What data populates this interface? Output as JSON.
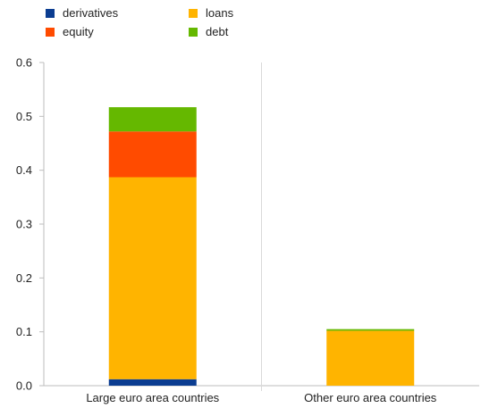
{
  "chart_data": {
    "type": "bar",
    "stacked": true,
    "categories": [
      "Large euro area countries",
      "Other euro area countries"
    ],
    "series": [
      {
        "name": "derivatives",
        "color": "#0b3d91",
        "values": [
          0.012,
          0.0
        ]
      },
      {
        "name": "loans",
        "color": "#ffb400",
        "values": [
          0.375,
          0.102
        ]
      },
      {
        "name": "equity",
        "color": "#ff4b00",
        "values": [
          0.085,
          0.0
        ]
      },
      {
        "name": "debt",
        "color": "#65b800",
        "values": [
          0.045,
          0.003
        ]
      }
    ],
    "ylim": [
      0,
      0.6
    ],
    "yticks": [
      "0.0",
      "0.1",
      "0.2",
      "0.3",
      "0.4",
      "0.5",
      "0.6"
    ],
    "legend_placement": "top-left",
    "grid": "vertical separator between categories"
  }
}
